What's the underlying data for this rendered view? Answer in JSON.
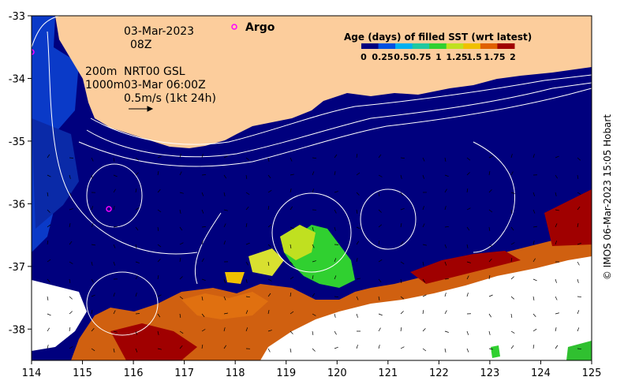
{
  "map": {
    "date": "03-Mar-2023",
    "time": "08Z",
    "argo_label": "Argo",
    "contour_label_1": "200m",
    "contour_label_2": "1000m",
    "current_source": "NRT00 GSL",
    "current_time": "03-Mar 06:00Z",
    "scale_label": "0.5m/s (1kt 24h)",
    "credit": "© IMOS 06-Mar-2023 15:05 Hobart",
    "colors": {
      "land": "#fccd9c",
      "sea_fresh": "#00007e",
      "argo": "#ff00ff"
    }
  },
  "legend": {
    "title": "Age (days) of filled SST (wrt latest)",
    "ticks": [
      "0",
      "0.25",
      "0.5",
      "0.75",
      "1",
      "1.25",
      "1.5",
      "1.75",
      "2"
    ],
    "colors": [
      "#00007e",
      "#0050e0",
      "#00b0f0",
      "#20c8a0",
      "#30d030",
      "#c0e020",
      "#f0c000",
      "#e06000",
      "#a00000"
    ]
  },
  "chart_data": {
    "type": "map",
    "x_ticks": [
      "114",
      "115",
      "116",
      "117",
      "118",
      "119",
      "120",
      "121",
      "122",
      "123",
      "124",
      "125"
    ],
    "y_ticks": [
      "-33",
      "-34",
      "-35",
      "-36",
      "-37",
      "-38"
    ],
    "xlim": [
      114,
      125
    ],
    "ylim": [
      -38.5,
      -33
    ]
  }
}
